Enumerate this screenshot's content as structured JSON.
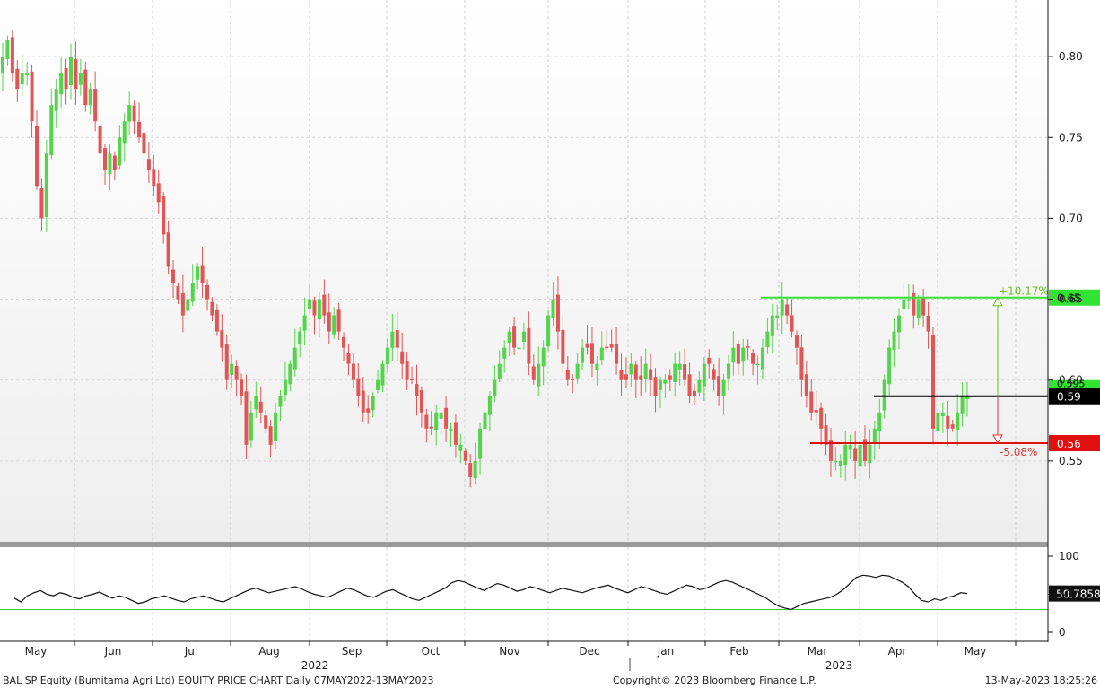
{
  "footer": {
    "left": "BAL SP Equity (Bumitama Agri Ltd) EQUITY PRICE CHART  Daily 07MAY2022-13MAY2023",
    "center": "Copyright© 2023 Bloomberg Finance L.P.",
    "right": "13-May-2023  18:25:26"
  },
  "chart_data": {
    "type": "candlestick",
    "price_panel": {
      "y_ticks": [
        "0.55",
        "0.60",
        "0.65",
        "0.70",
        "0.75",
        "0.80"
      ],
      "ylim": [
        0.5,
        0.835
      ],
      "colors": {
        "up": "#53d44a",
        "down": "#e05555"
      },
      "closes_approx": [
        0.8,
        0.81,
        0.79,
        0.78,
        0.79,
        0.79,
        0.76,
        0.72,
        0.7,
        0.74,
        0.77,
        0.78,
        0.79,
        0.78,
        0.8,
        0.78,
        0.79,
        0.77,
        0.78,
        0.76,
        0.74,
        0.73,
        0.74,
        0.73,
        0.75,
        0.76,
        0.77,
        0.76,
        0.75,
        0.74,
        0.73,
        0.72,
        0.71,
        0.69,
        0.67,
        0.66,
        0.65,
        0.64,
        0.65,
        0.66,
        0.67,
        0.66,
        0.65,
        0.64,
        0.63,
        0.62,
        0.6,
        0.61,
        0.6,
        0.59,
        0.56,
        0.58,
        0.59,
        0.58,
        0.57,
        0.56,
        0.58,
        0.59,
        0.6,
        0.61,
        0.62,
        0.63,
        0.64,
        0.65,
        0.64,
        0.65,
        0.64,
        0.63,
        0.64,
        0.63,
        0.62,
        0.61,
        0.6,
        0.59,
        0.58,
        0.58,
        0.59,
        0.6,
        0.61,
        0.62,
        0.63,
        0.62,
        0.61,
        0.6,
        0.6,
        0.59,
        0.58,
        0.57,
        0.57,
        0.58,
        0.58,
        0.57,
        0.57,
        0.56,
        0.56,
        0.55,
        0.54,
        0.55,
        0.57,
        0.58,
        0.59,
        0.6,
        0.61,
        0.62,
        0.63,
        0.62,
        0.62,
        0.63,
        0.61,
        0.6,
        0.61,
        0.62,
        0.64,
        0.65,
        0.63,
        0.61,
        0.6,
        0.6,
        0.61,
        0.62,
        0.62,
        0.61,
        0.61,
        0.62,
        0.62,
        0.62,
        0.61,
        0.6,
        0.6,
        0.61,
        0.6,
        0.6,
        0.61,
        0.6,
        0.59,
        0.6,
        0.6,
        0.6,
        0.61,
        0.61,
        0.6,
        0.59,
        0.59,
        0.6,
        0.61,
        0.61,
        0.6,
        0.59,
        0.6,
        0.61,
        0.62,
        0.61,
        0.62,
        0.62,
        0.61,
        0.61,
        0.62,
        0.63,
        0.64,
        0.64,
        0.65,
        0.64,
        0.63,
        0.62,
        0.6,
        0.59,
        0.58,
        0.58,
        0.57,
        0.56,
        0.55,
        0.55,
        0.55,
        0.56,
        0.56,
        0.55,
        0.56,
        0.55,
        0.56,
        0.57,
        0.58,
        0.6,
        0.62,
        0.63,
        0.64,
        0.65,
        0.65,
        0.64,
        0.65,
        0.64,
        0.63,
        0.57,
        0.58,
        0.58,
        0.57,
        0.57,
        0.58,
        0.59,
        0.59
      ],
      "levels": [
        {
          "label": "0.65",
          "value": 0.651,
          "color": "#33e333",
          "tag_bg": "#33e333",
          "tag_fg": "#000000"
        },
        {
          "label": "0.59",
          "value": 0.59,
          "color": "#000000",
          "tag_bg": "#000000",
          "tag_fg": "#ffffff"
        },
        {
          "label": "0.56",
          "value": 0.561,
          "color": "#e01010",
          "tag_bg": "#e01010",
          "tag_fg": "#ffffff"
        }
      ],
      "hidden_tag_label": "0.595",
      "annotations": [
        {
          "text": "+10.17%",
          "color": "#6abf1e"
        },
        {
          "text": "-5.08%",
          "color": "#e03535"
        }
      ]
    },
    "rsi_panel": {
      "y_ticks": [
        "100",
        "50",
        "0"
      ],
      "ylim": [
        0,
        100
      ],
      "upper_band": 70,
      "lower_band": 30,
      "last_value_label": "50.7858",
      "values_approx": [
        45,
        40,
        48,
        52,
        55,
        50,
        48,
        52,
        50,
        46,
        44,
        48,
        50,
        53,
        49,
        45,
        48,
        46,
        42,
        38,
        40,
        44,
        46,
        48,
        45,
        42,
        40,
        44,
        46,
        48,
        45,
        42,
        40,
        44,
        48,
        52,
        56,
        58,
        55,
        52,
        54,
        56,
        58,
        60,
        57,
        53,
        50,
        48,
        46,
        50,
        54,
        58,
        56,
        52,
        48,
        46,
        50,
        54,
        56,
        52,
        48,
        44,
        42,
        46,
        50,
        54,
        58,
        65,
        68,
        66,
        62,
        58,
        55,
        60,
        64,
        62,
        58,
        54,
        56,
        60,
        58,
        55,
        52,
        55,
        58,
        56,
        54,
        52,
        55,
        58,
        60,
        62,
        58,
        55,
        52,
        56,
        60,
        58,
        55,
        52,
        50,
        54,
        58,
        62,
        60,
        56,
        58,
        62,
        66,
        68,
        66,
        62,
        58,
        54,
        50,
        46,
        40,
        35,
        32,
        30,
        34,
        38,
        40,
        42,
        44,
        46,
        50,
        56,
        64,
        72,
        75,
        74,
        72,
        75,
        74,
        70,
        66,
        60,
        50,
        42,
        40,
        44,
        42,
        46,
        48,
        52,
        51
      ]
    },
    "x_axis": {
      "months": [
        "May",
        "Jun",
        "Jul",
        "Aug",
        "Sep",
        "Oct",
        "Nov",
        "Dec",
        "Jan",
        "Feb",
        "Mar",
        "Apr",
        "May"
      ],
      "years": [
        "2022",
        "2023"
      ]
    }
  }
}
